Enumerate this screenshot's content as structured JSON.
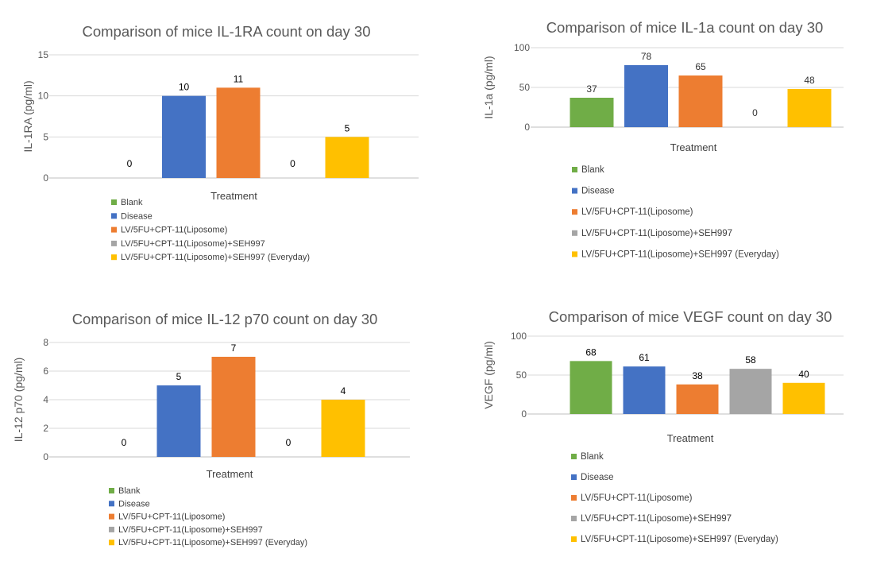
{
  "colors": {
    "Blank": "#70ad47",
    "Disease": "#4472c4",
    "LV/5FU+CPT-11(Liposome)": "#ed7d31",
    "LV/5FU+CPT-11(Liposome)+SEH997": "#a5a5a5",
    "LV/5FU+CPT-11(Liposome)+SEH997 (Everyday)": "#ffc000"
  },
  "chart_data": [
    {
      "type": "bar",
      "title": "Comparison of mice IL-1RA count on day 30",
      "xlabel": "Treatment",
      "ylabel": "IL-1RA (pg/ml)",
      "ylim": [
        0,
        15
      ],
      "yticks": [
        0,
        5,
        10,
        15
      ],
      "grid": true,
      "legend_position": "bottom-left",
      "categories": [
        "Blank",
        "Disease",
        "LV/5FU+CPT-11(Liposome)",
        "LV/5FU+CPT-11(Liposome)+SEH997",
        "LV/5FU+CPT-11(Liposome)+SEH997 (Everyday)"
      ],
      "values": [
        0,
        10,
        11,
        0,
        5
      ]
    },
    {
      "type": "bar",
      "title": "Comparison of mice IL-1a count on day 30",
      "xlabel": "Treatment",
      "ylabel": "IL-1a (pg/ml)",
      "ylim": [
        0,
        100
      ],
      "yticks": [
        0,
        50,
        100
      ],
      "grid": true,
      "legend_position": "bottom-left",
      "categories": [
        "Blank",
        "Disease",
        "LV/5FU+CPT-11(Liposome)",
        "LV/5FU+CPT-11(Liposome)+SEH997",
        "LV/5FU+CPT-11(Liposome)+SEH997 (Everyday)"
      ],
      "values": [
        37,
        78,
        65,
        0,
        48
      ]
    },
    {
      "type": "bar",
      "title": "Comparison of mice IL-12 p70 count on day 30",
      "xlabel": "Treatment",
      "ylabel": "IL-12 p70 (pg/ml)",
      "ylim": [
        0,
        8
      ],
      "yticks": [
        0,
        2,
        4,
        6,
        8
      ],
      "grid": true,
      "legend_position": "bottom-left",
      "categories": [
        "Blank",
        "Disease",
        "LV/5FU+CPT-11(Liposome)",
        "LV/5FU+CPT-11(Liposome)+SEH997",
        "LV/5FU+CPT-11(Liposome)+SEH997 (Everyday)"
      ],
      "values": [
        0,
        5,
        7,
        0,
        4
      ]
    },
    {
      "type": "bar",
      "title": "Comparison of mice VEGF count on day 30",
      "xlabel": "Treatment",
      "ylabel": "VEGF (pg/ml)",
      "ylim": [
        0,
        100
      ],
      "yticks": [
        0,
        50,
        100
      ],
      "grid": true,
      "legend_position": "bottom-left",
      "categories": [
        "Blank",
        "Disease",
        "LV/5FU+CPT-11(Liposome)",
        "LV/5FU+CPT-11(Liposome)+SEH997",
        "LV/5FU+CPT-11(Liposome)+SEH997 (Everyday)"
      ],
      "values": [
        68,
        61,
        38,
        58,
        40
      ]
    }
  ]
}
